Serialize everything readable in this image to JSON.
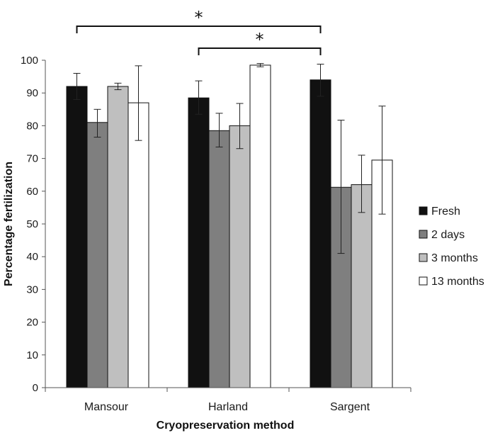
{
  "chart_data": {
    "type": "bar",
    "title": "",
    "xlabel": "Cryopreservation method",
    "ylabel": "Percentage fertilization",
    "ylim": [
      0,
      100
    ],
    "yticks": [
      "0",
      "10",
      "20",
      "30",
      "40",
      "50",
      "60",
      "70",
      "80",
      "90",
      "100"
    ],
    "categories": [
      "Mansour",
      "Harland",
      "Sargent"
    ],
    "series": [
      {
        "name": "Fresh",
        "color": "#111111",
        "values": [
          92,
          88.5,
          94
        ],
        "err_low": [
          88,
          83.5,
          89
        ],
        "err_high": [
          96,
          93.7,
          98.8
        ]
      },
      {
        "name": "2 days",
        "color": "#7f7f7f",
        "values": [
          81,
          78.5,
          61.2
        ],
        "err_low": [
          76.5,
          73.5,
          41
        ],
        "err_high": [
          85,
          83.8,
          81.7
        ]
      },
      {
        "name": "3 months",
        "color": "#bfbfbf",
        "values": [
          92,
          80,
          62
        ],
        "err_low": [
          91,
          73,
          53.5
        ],
        "err_high": [
          93,
          86.8,
          71
        ]
      },
      {
        "name": "13 months",
        "color": "#ffffff",
        "values": [
          87,
          98.5,
          69.5
        ],
        "err_low": [
          75.5,
          98,
          53
        ],
        "err_high": [
          98.3,
          99,
          86
        ]
      }
    ],
    "legend_position": "right",
    "annotations": [
      {
        "text": "*",
        "from": "Mansour",
        "to": "Sargent"
      },
      {
        "text": "*",
        "from": "Harland",
        "to": "Sargent"
      }
    ]
  }
}
